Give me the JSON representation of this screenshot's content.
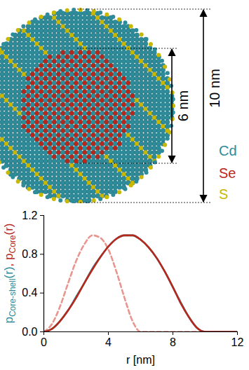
{
  "diagram": {
    "outer_label": "10 nm",
    "core_label": "6 nm",
    "elements": [
      {
        "text": "Cd",
        "color": "#2e8b99"
      },
      {
        "text": "Se",
        "color": "#b8271c"
      },
      {
        "text": "S",
        "color": "#c9b800"
      }
    ]
  },
  "chart_data": {
    "type": "line",
    "x_label": "r [nm]",
    "y_label": [
      {
        "base": "p",
        "sub": "Core-shell",
        "tail": "(r)",
        "color": "#2e8b99"
      },
      {
        "base": ", ",
        "color": "#b8271c"
      },
      {
        "base": "p",
        "sub": "Core",
        "tail": "(r)",
        "color": "#b8271c"
      }
    ],
    "x": [
      0,
      0.5,
      1,
      1.5,
      2,
      2.5,
      3,
      3.5,
      4,
      4.5,
      5,
      5.5,
      6,
      6.5,
      7,
      7.5,
      8,
      8.5,
      9,
      9.5,
      10,
      10.5,
      11,
      11.5,
      12
    ],
    "series": [
      {
        "color": "#e8968f",
        "line_style": "dashed",
        "values": [
          0,
          0.08,
          0.26,
          0.5,
          0.73,
          0.9,
          0.995,
          0.97,
          0.85,
          0.62,
          0.35,
          0.11,
          0,
          0,
          0,
          0,
          0,
          0,
          0,
          0,
          0,
          0,
          0,
          0,
          0
        ]
      },
      {
        "color": "#2e8b99",
        "line_style": "solid",
        "values": [
          0,
          0.03,
          0.11,
          0.22,
          0.36,
          0.5,
          0.65,
          0.77,
          0.88,
          0.96,
          0.995,
          0.995,
          0.95,
          0.87,
          0.76,
          0.62,
          0.46,
          0.3,
          0.15,
          0.04,
          0,
          0,
          0,
          0,
          0
        ]
      },
      {
        "color": "#b8271c",
        "line_style": "solid",
        "values": [
          0,
          0.03,
          0.11,
          0.22,
          0.35,
          0.5,
          0.64,
          0.77,
          0.88,
          0.96,
          0.995,
          0.995,
          0.95,
          0.87,
          0.76,
          0.62,
          0.46,
          0.29,
          0.15,
          0.04,
          0,
          0,
          0,
          0,
          0
        ]
      }
    ],
    "xlim": [
      0,
      12
    ],
    "xticks": [
      0,
      4,
      8,
      12
    ],
    "ylim": [
      0,
      1.2
    ],
    "yticks": [
      {
        "value": 0,
        "label": "0.0"
      },
      0.4,
      0.8,
      1.2
    ],
    "grid": false
  }
}
